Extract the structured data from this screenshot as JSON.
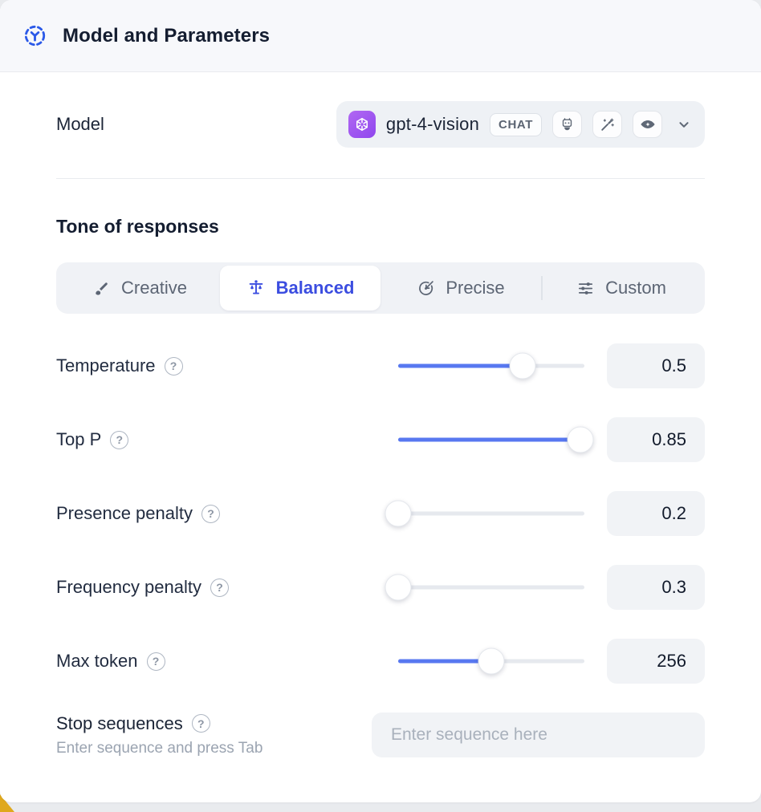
{
  "header": {
    "title": "Model and Parameters",
    "icon": "model-icon"
  },
  "model_row": {
    "label": "Model",
    "selected_model": "gpt-4-vision",
    "type_badge": "CHAT",
    "provider_icon": "openai-logo",
    "capability_icons": [
      "robot-icon",
      "magic-wand-icon",
      "vision-eye-icon"
    ],
    "dropdown_icon": "chevron-down-icon"
  },
  "tone": {
    "title": "Tone of responses",
    "tabs": [
      {
        "label": "Creative",
        "icon": "paintbrush-icon",
        "selected": false
      },
      {
        "label": "Balanced",
        "icon": "balance-scale-icon",
        "selected": true
      },
      {
        "label": "Precise",
        "icon": "target-icon",
        "selected": false
      },
      {
        "label": "Custom",
        "icon": "sliders-icon",
        "selected": false
      }
    ]
  },
  "parameters": [
    {
      "label": "Temperature",
      "value": "0.5",
      "slider_percent": 67
    },
    {
      "label": "Top P",
      "value": "0.85",
      "slider_percent": 98
    },
    {
      "label": "Presence penalty",
      "value": "0.2",
      "slider_percent": 0
    },
    {
      "label": "Frequency penalty",
      "value": "0.3",
      "slider_percent": 0
    },
    {
      "label": "Max token",
      "value": "256",
      "slider_percent": 50
    }
  ],
  "stop_sequences": {
    "label": "Stop sequences",
    "hint": "Enter sequence and press Tab",
    "placeholder": "Enter sequence here"
  },
  "icons": {
    "help_glyph": "?"
  },
  "colors": {
    "accent_blue": "#3b4de0",
    "slider_fill": "#5878f0",
    "header_icon_blue": "#2b59e8",
    "logo_purple": "#9a4ef0",
    "control_bg": "#f0f2f6",
    "text_dark": "#141d30",
    "text_gray": "#5c6574",
    "corner_accent_yellow": "#dfa81d"
  }
}
